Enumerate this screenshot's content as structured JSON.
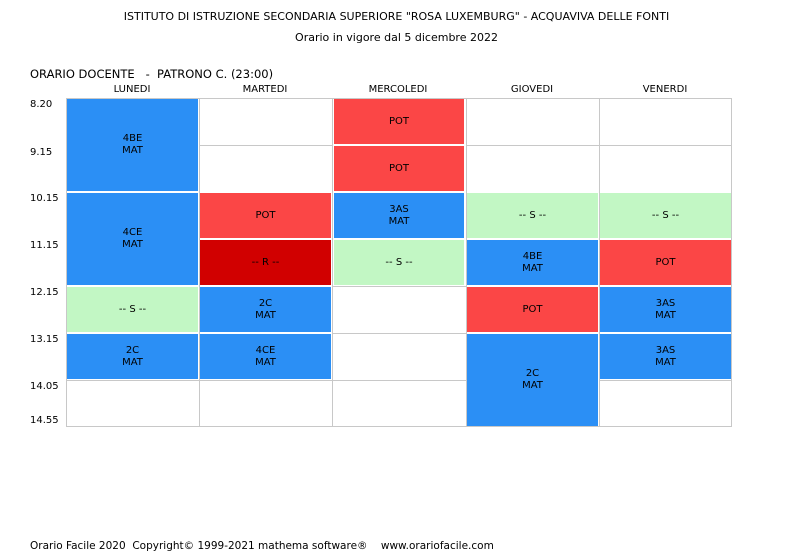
{
  "header": {
    "institute": "ISTITUTO DI ISTRUZIONE SECONDARIA SUPERIORE \"ROSA LUXEMBURG\" - ACQUAVIVA DELLE FONTI",
    "validity": "Orario in vigore dal 5 dicembre 2022"
  },
  "teacher_label": "ORARIO DOCENTE   -  PATRONO C. (23:00)",
  "days": [
    "LUNEDI",
    "MARTEDI",
    "MERCOLEDI",
    "GIOVEDI",
    "VENERDI"
  ],
  "times": [
    "8.20",
    "9.15",
    "10.15",
    "11.15",
    "12.15",
    "13.15",
    "14.05",
    "14.55"
  ],
  "colors": {
    "class": "#2b8ff5",
    "pot": "#fb4646",
    "s": "#c2f7c4",
    "r": "#d10000"
  },
  "schedule": {
    "lunedi": {
      "c1": {
        "l1": "4BE",
        "l2": "MAT"
      },
      "c2": {
        "l1": "4CE",
        "l2": "MAT"
      },
      "c3": {
        "l1": "-- S --"
      },
      "c4": {
        "l1": "2C",
        "l2": "MAT"
      }
    },
    "martedi": {
      "c1": {
        "l1": "POT"
      },
      "c2": {
        "l1": "-- R --"
      },
      "c3": {
        "l1": "2C",
        "l2": "MAT"
      },
      "c4": {
        "l1": "4CE",
        "l2": "MAT"
      }
    },
    "mercoledi": {
      "c1": {
        "l1": "POT"
      },
      "c2": {
        "l1": "POT"
      },
      "c3": {
        "l1": "3AS",
        "l2": "MAT"
      },
      "c4": {
        "l1": "-- S --"
      }
    },
    "giovedi": {
      "c1": {
        "l1": "-- S --"
      },
      "c2": {
        "l1": "4BE",
        "l2": "MAT"
      },
      "c3": {
        "l1": "POT"
      },
      "c4": {
        "l1": "2C",
        "l2": "MAT"
      }
    },
    "venerdi": {
      "c1": {
        "l1": "-- S --"
      },
      "c2": {
        "l1": "POT"
      },
      "c3": {
        "l1": "3AS",
        "l2": "MAT"
      },
      "c4": {
        "l1": "3AS",
        "l2": "MAT"
      }
    }
  },
  "footer": "Orario Facile 2020  Copyright© 1999-2021 mathema software®    www.orariofacile.com"
}
